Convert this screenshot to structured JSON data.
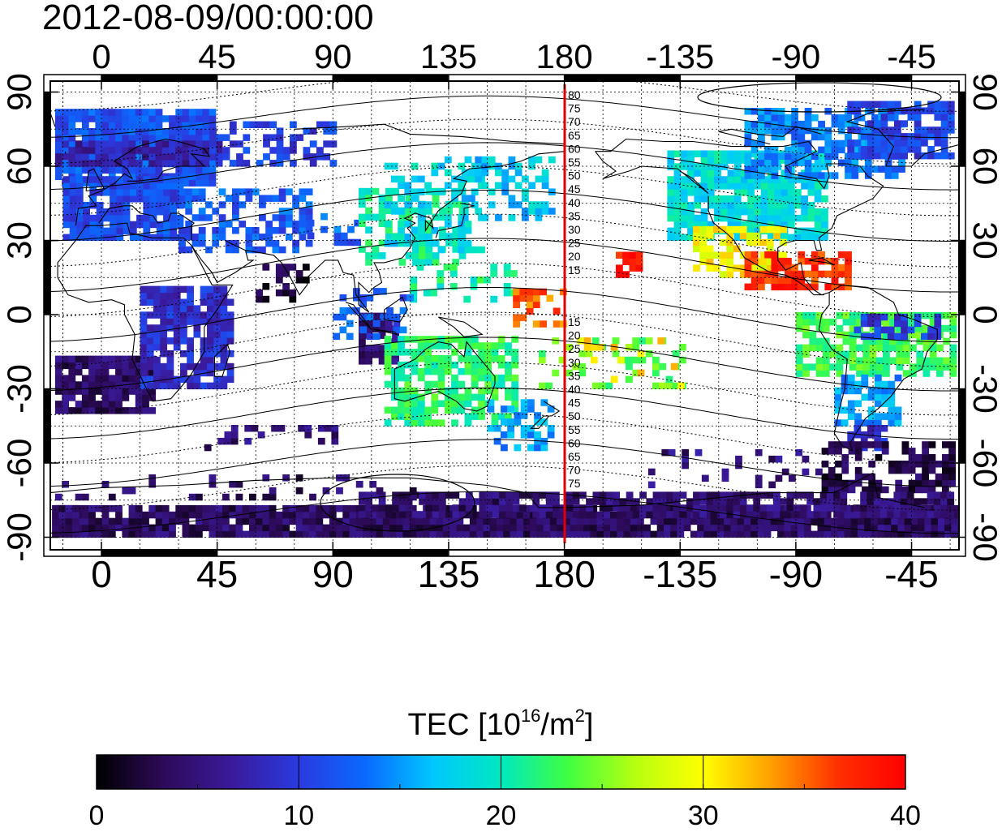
{
  "timestamp": "2012-08-09/00:00:00",
  "colorbar": {
    "title_main": "TEC  [10",
    "title_sup1": "16",
    "title_mid": "/m",
    "title_sup2": "2",
    "title_end": "]",
    "min": 0,
    "max": 40,
    "ticks": [
      0,
      10,
      20,
      30,
      40
    ],
    "tick_labels": [
      "0",
      "10",
      "20",
      "30",
      "40"
    ],
    "colors": [
      "#000000",
      "#2d0a5a",
      "#3a1a9a",
      "#2a3ae0",
      "#0a6aff",
      "#00c8ff",
      "#00e8c0",
      "#40ff40",
      "#b8ff10",
      "#ffff00",
      "#ffa000",
      "#ff3000",
      "#ff0000"
    ]
  },
  "map": {
    "lon_ticks_top": [
      "0",
      "45",
      "90",
      "135",
      "180",
      "-135",
      "-90",
      "-45"
    ],
    "lon_ticks_bottom": [
      "0",
      "45",
      "90",
      "135",
      "180",
      "-135",
      "-90",
      "-45"
    ],
    "lat_ticks_left": [
      "90",
      "60",
      "30",
      "0",
      "-30",
      "-60",
      "-90"
    ],
    "lat_ticks_right": [
      "90",
      "60",
      "30",
      "0",
      "-30",
      "-60",
      "-90"
    ],
    "meridian_line_color": "#e00000",
    "meridian_labels_north": [
      "80",
      "75",
      "70",
      "65",
      "60",
      "55",
      "50",
      "45",
      "40",
      "35",
      "30",
      "25",
      "20",
      "15"
    ],
    "meridian_labels_south": [
      "15",
      "20",
      "25",
      "30",
      "35",
      "40",
      "45",
      "50",
      "55",
      "60",
      "65",
      "70",
      "75"
    ]
  }
}
